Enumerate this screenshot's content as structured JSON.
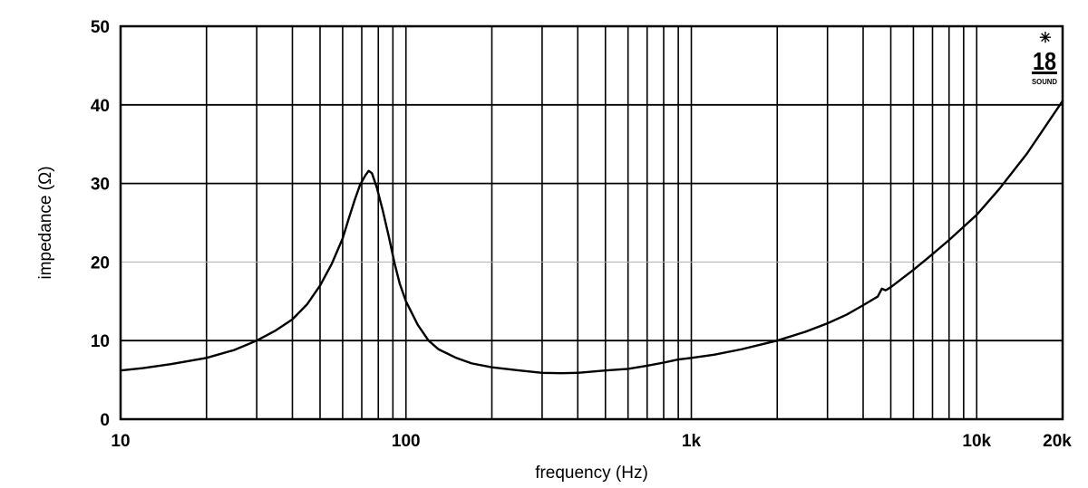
{
  "chart_data": {
    "type": "line",
    "title": "",
    "xlabel": "frequency (Hz)",
    "ylabel": "impedance (Ω)",
    "x_scale": "log",
    "xlim": [
      10,
      20000
    ],
    "ylim": [
      0,
      50
    ],
    "grid": true,
    "y_ticks": [
      0,
      10,
      20,
      30,
      40,
      50
    ],
    "x_tick_labels": [
      {
        "value": 10,
        "label": "10"
      },
      {
        "value": 100,
        "label": "100"
      },
      {
        "value": 1000,
        "label": "1k"
      },
      {
        "value": 10000,
        "label": "10k"
      },
      {
        "value": 20000,
        "label": "20k"
      }
    ],
    "x_gridlines": [
      20,
      30,
      40,
      50,
      60,
      70,
      80,
      90,
      100,
      200,
      300,
      400,
      500,
      600,
      700,
      800,
      900,
      1000,
      2000,
      3000,
      4000,
      5000,
      6000,
      7000,
      8000,
      9000,
      10000
    ],
    "y_gridlines": [
      10,
      20,
      30,
      40
    ],
    "light_y_gridlines": [
      20
    ],
    "series": [
      {
        "name": "",
        "x": [
          10,
          12,
          15,
          20,
          25,
          30,
          35,
          40,
          45,
          50,
          55,
          60,
          63,
          66,
          69,
          72,
          74,
          76,
          79,
          83,
          87,
          91,
          95,
          100,
          110,
          120,
          130,
          150,
          170,
          200,
          250,
          300,
          350,
          400,
          500,
          600,
          700,
          800,
          900,
          1000,
          1200,
          1500,
          2000,
          2500,
          3000,
          3500,
          4000,
          4500,
          4650,
          4800,
          5000,
          6000,
          7000,
          8000,
          10000,
          12000,
          15000,
          20000
        ],
        "y": [
          6.2,
          6.5,
          7.0,
          7.8,
          8.8,
          10.0,
          11.3,
          12.7,
          14.6,
          17.0,
          19.8,
          23.0,
          25.5,
          27.8,
          29.8,
          31.0,
          31.6,
          31.3,
          29.5,
          26.5,
          23.3,
          20.0,
          17.3,
          15.0,
          12.0,
          10.0,
          8.9,
          7.8,
          7.1,
          6.6,
          6.2,
          5.9,
          5.85,
          5.9,
          6.2,
          6.4,
          6.8,
          7.2,
          7.6,
          7.8,
          8.2,
          8.9,
          10.0,
          11.1,
          12.2,
          13.3,
          14.5,
          15.6,
          16.6,
          16.4,
          16.8,
          19.0,
          21.0,
          22.8,
          26.0,
          29.3,
          33.8,
          40.5
        ]
      }
    ]
  },
  "logo": {
    "text": "18",
    "subtext": "SOUND"
  },
  "colors": {
    "line": "#000000",
    "grid": "#000000",
    "light_grid": "#b0b0b0",
    "background": "#ffffff"
  }
}
